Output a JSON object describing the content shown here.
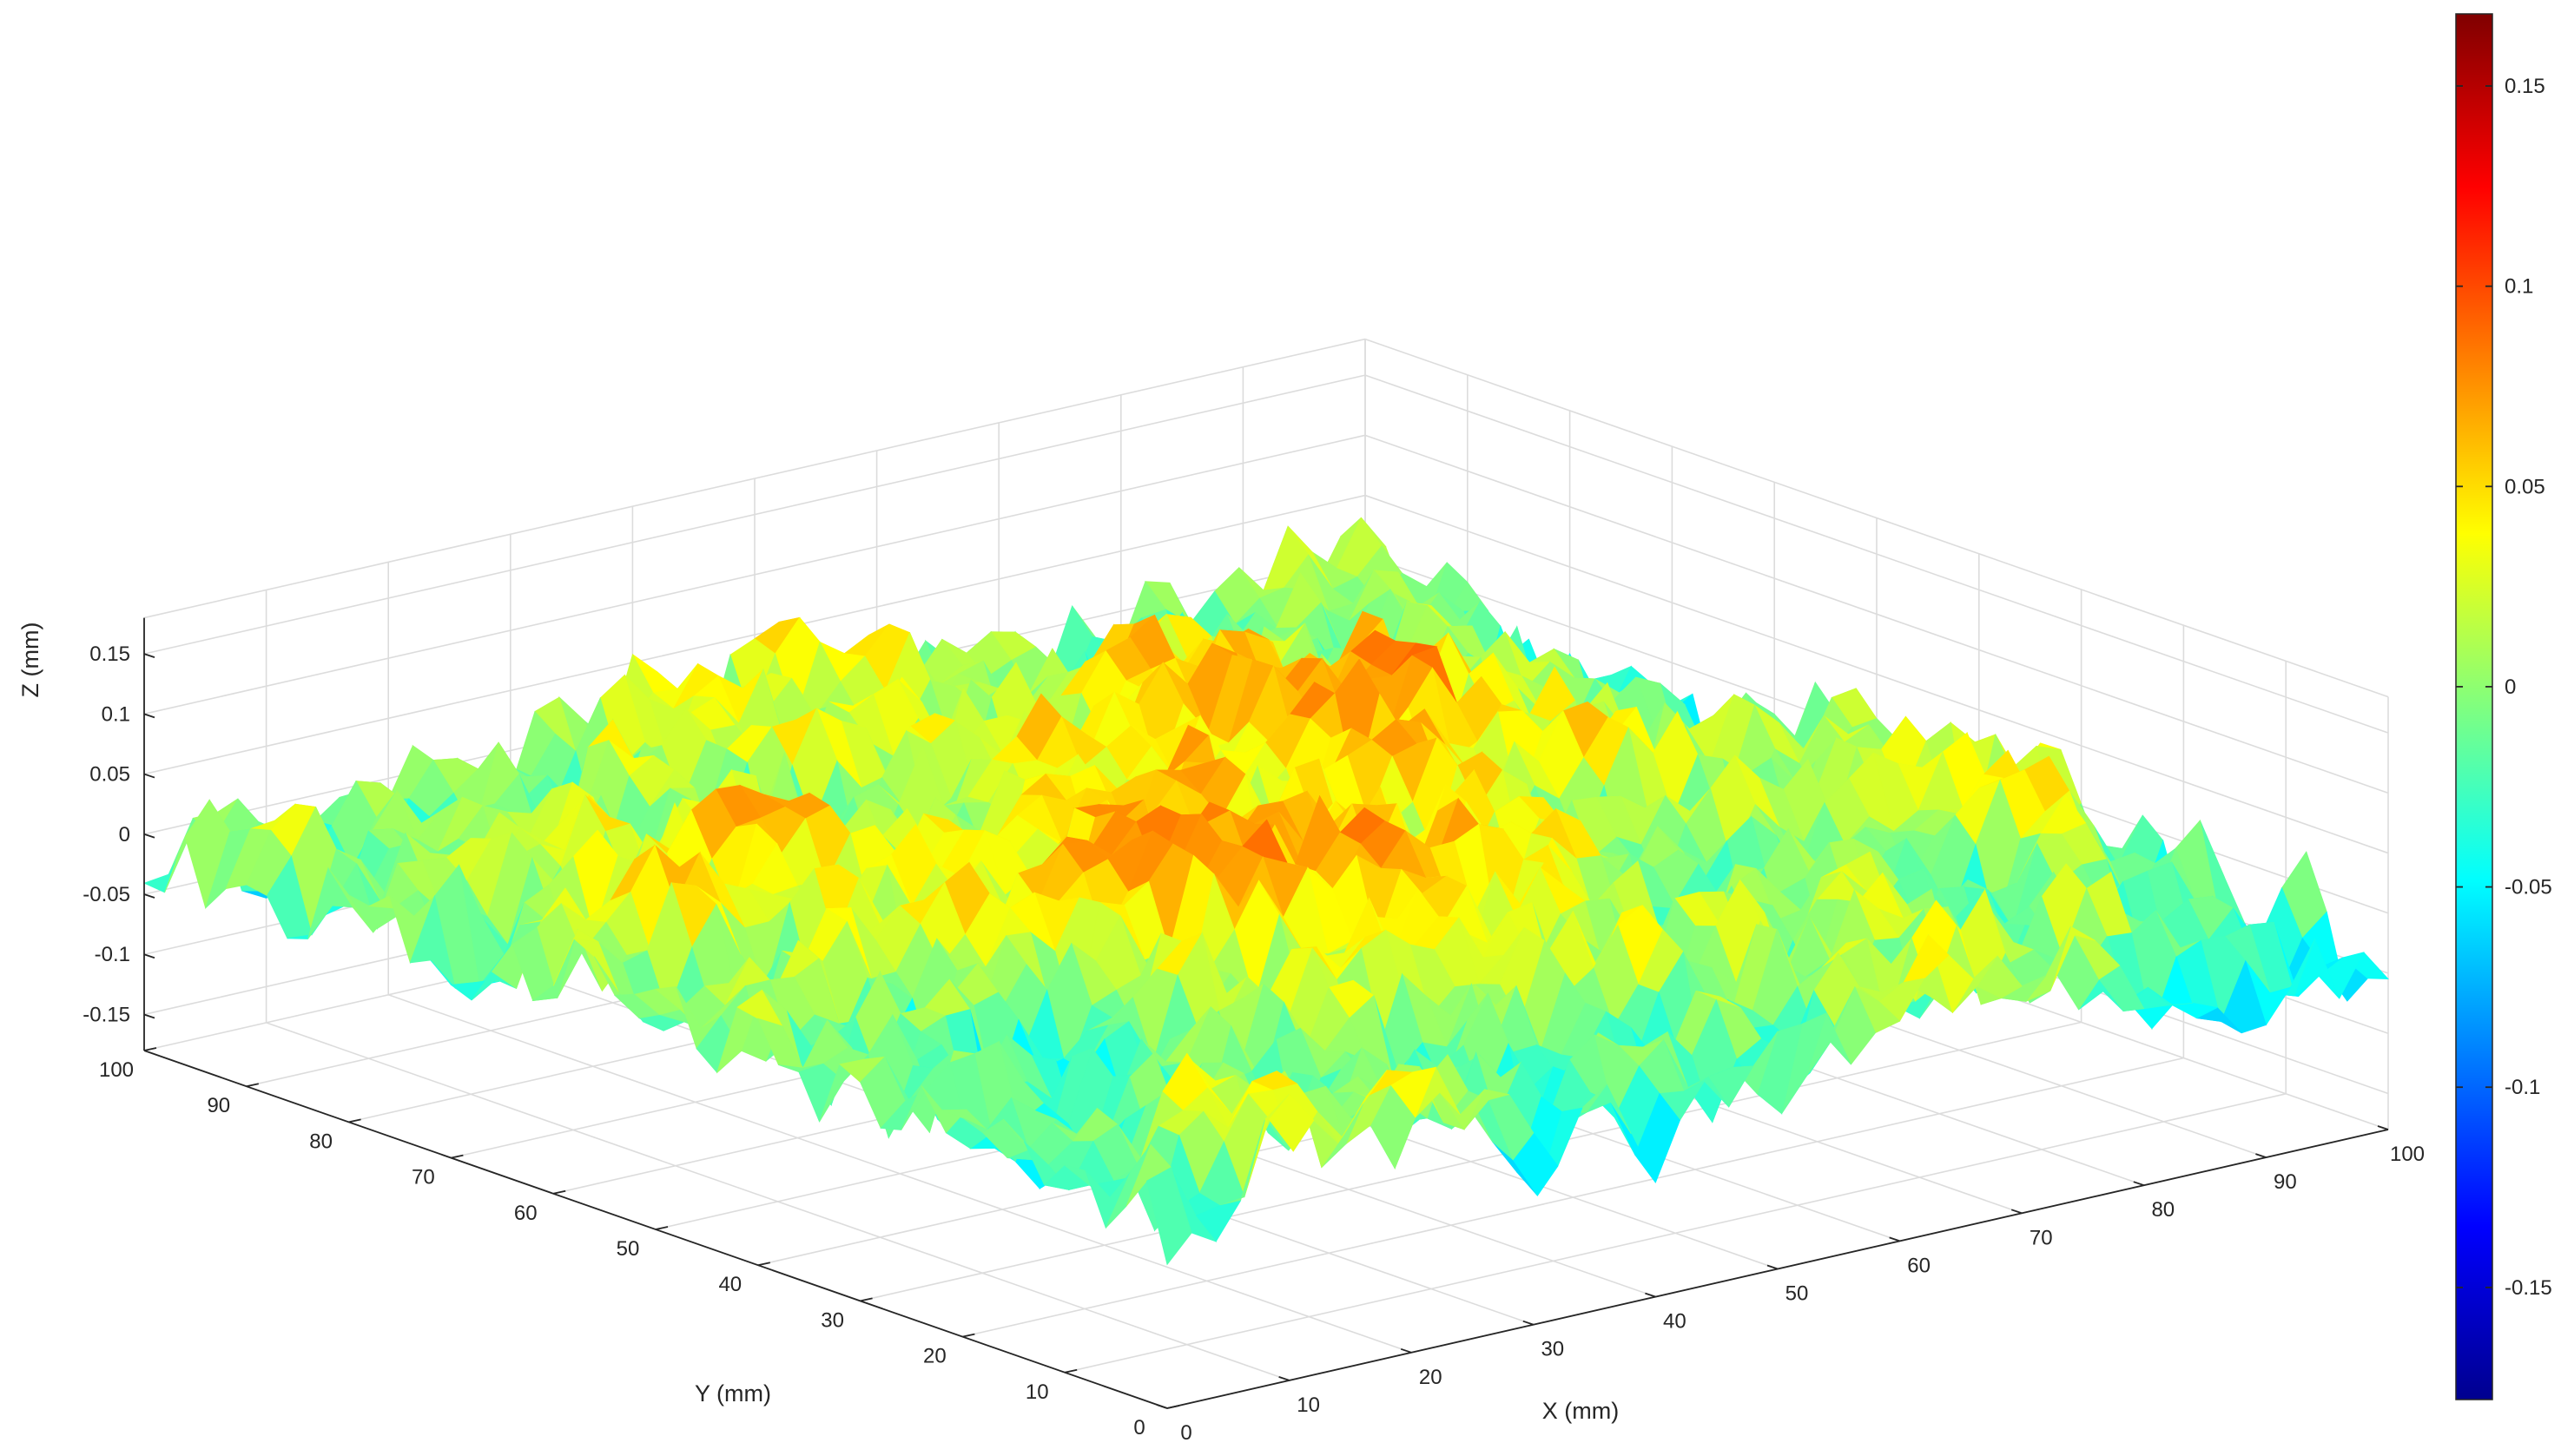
{
  "chart_data": {
    "type": "surface",
    "title": "",
    "xlabel": "X (mm)",
    "ylabel": "Y (mm)",
    "zlabel": "Z (mm)",
    "xlim": [
      0,
      100
    ],
    "ylim": [
      0,
      100
    ],
    "zlim": [
      -0.18,
      0.18
    ],
    "x_ticks": [
      "0",
      "10",
      "20",
      "30",
      "40",
      "50",
      "60",
      "70",
      "80",
      "90",
      "100"
    ],
    "y_ticks": [
      "0",
      "10",
      "20",
      "30",
      "40",
      "50",
      "60",
      "70",
      "80",
      "90",
      "100"
    ],
    "z_ticks": [
      "-0.15",
      "-0.1",
      "-0.05",
      "0",
      "0.05",
      "0.1",
      "0.15"
    ],
    "colorbar": {
      "colormap": "jet",
      "limits": [
        -0.178,
        0.168
      ],
      "ticks": [
        "-0.15",
        "-0.1",
        "-0.05",
        "0",
        "0.05",
        "0.1",
        "0.15"
      ]
    },
    "surface": {
      "grid_size": 51,
      "max_value": 0.168,
      "min_value": -0.178,
      "central_rise_amplitude": 0.07,
      "random_roughness_amplitude": 0.07
    },
    "grid": true,
    "box": "three back planes with grid"
  },
  "colors": {
    "jet": [
      "#00008f",
      "#0000ff",
      "#00ffff",
      "#ffff00",
      "#ff0000",
      "#800000"
    ],
    "axis": "#262626",
    "grid": "#dcdcdc"
  }
}
